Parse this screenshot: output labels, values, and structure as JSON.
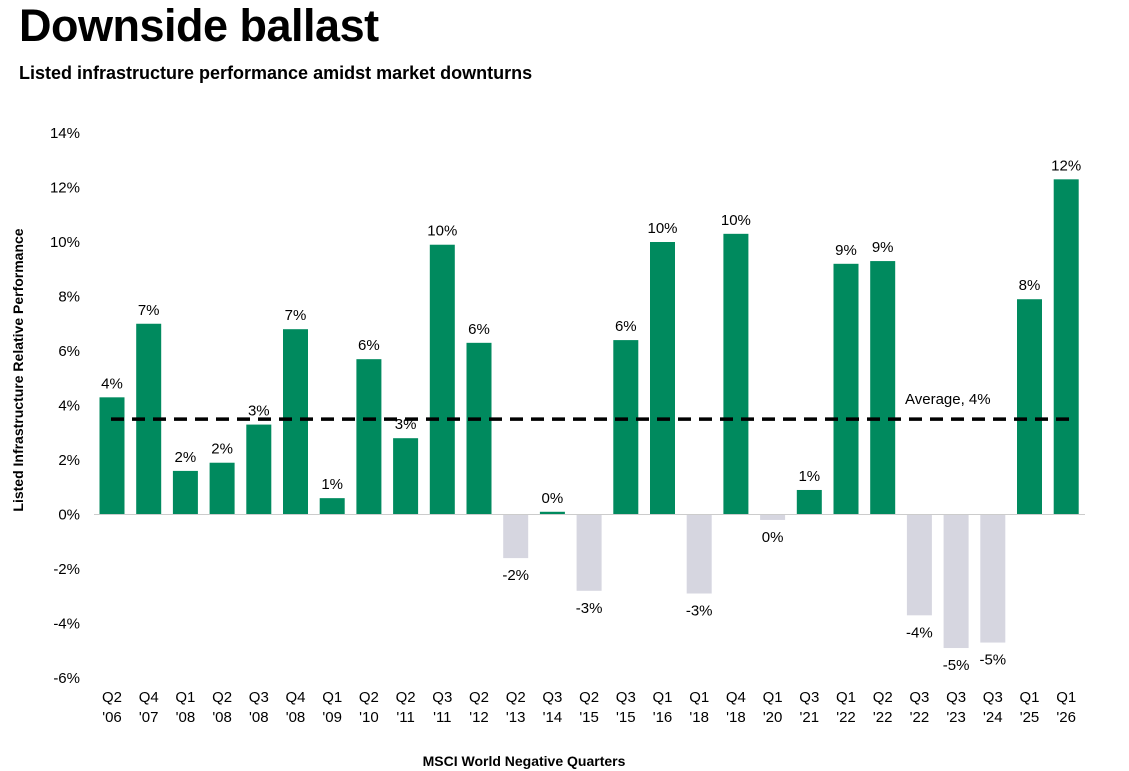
{
  "title": "Downside ballast",
  "subtitle": "Listed infrastructure performance amidst market downturns",
  "colors": {
    "positive": "#008a5e",
    "negative": "#d6d6e0",
    "average_line": "#000000"
  },
  "chart_data": {
    "type": "bar",
    "title": "Downside ballast",
    "subtitle": "Listed infrastructure performance amidst market downturns",
    "xlabel": "MSCI World Negative Quarters",
    "ylabel": "Listed Infrastructure Relative Performance",
    "ylim": [
      -6,
      14
    ],
    "yticks": [
      14,
      12,
      10,
      8,
      6,
      4,
      2,
      0,
      -2,
      -4,
      -6
    ],
    "ytick_labels": [
      "14%",
      "12%",
      "10%",
      "8%",
      "6%",
      "4%",
      "2%",
      "0%",
      "-2%",
      "-4%",
      "-6%"
    ],
    "categories": [
      [
        "Q2",
        "'06"
      ],
      [
        "Q4",
        "'07"
      ],
      [
        "Q1",
        "'08"
      ],
      [
        "Q2",
        "'08"
      ],
      [
        "Q3",
        "'08"
      ],
      [
        "Q4",
        "'08"
      ],
      [
        "Q1",
        "'09"
      ],
      [
        "Q2",
        "'10"
      ],
      [
        "Q2",
        "'11"
      ],
      [
        "Q3",
        "'11"
      ],
      [
        "Q2",
        "'12"
      ],
      [
        "Q2",
        "'13"
      ],
      [
        "Q3",
        "'14"
      ],
      [
        "Q2",
        "'15"
      ],
      [
        "Q3",
        "'15"
      ],
      [
        "Q1",
        "'16"
      ],
      [
        "Q1",
        "'18"
      ],
      [
        "Q4",
        "'18"
      ],
      [
        "Q1",
        "'20"
      ],
      [
        "Q3",
        "'21"
      ],
      [
        "Q1",
        "'22"
      ],
      [
        "Q2",
        "'22"
      ],
      [
        "Q3",
        "'22"
      ],
      [
        "Q3",
        "'23"
      ],
      [
        "Q3",
        "'24"
      ],
      [
        "Q1",
        "'25"
      ],
      [
        "Q1",
        "'26"
      ]
    ],
    "values": [
      4.3,
      7.0,
      1.6,
      1.9,
      3.3,
      6.8,
      0.6,
      5.7,
      2.8,
      9.9,
      6.3,
      -1.6,
      0.1,
      -2.8,
      6.4,
      10.0,
      -2.9,
      10.3,
      -0.2,
      0.9,
      9.2,
      9.3,
      -3.7,
      -4.9,
      -4.7,
      7.9,
      12.3
    ],
    "data_labels": [
      "4%",
      "7%",
      "2%",
      "2%",
      "3%",
      "7%",
      "1%",
      "6%",
      "3%",
      "10%",
      "6%",
      "-2%",
      "0%",
      "-3%",
      "6%",
      "10%",
      "-3%",
      "10%",
      "0%",
      "1%",
      "9%",
      "9%",
      "-4%",
      "-5%",
      "-5%",
      "8%",
      "12%"
    ],
    "average": {
      "value": 3.5,
      "label": "Average, 4%",
      "style": "dashed"
    },
    "grid": false,
    "legend": "none"
  }
}
